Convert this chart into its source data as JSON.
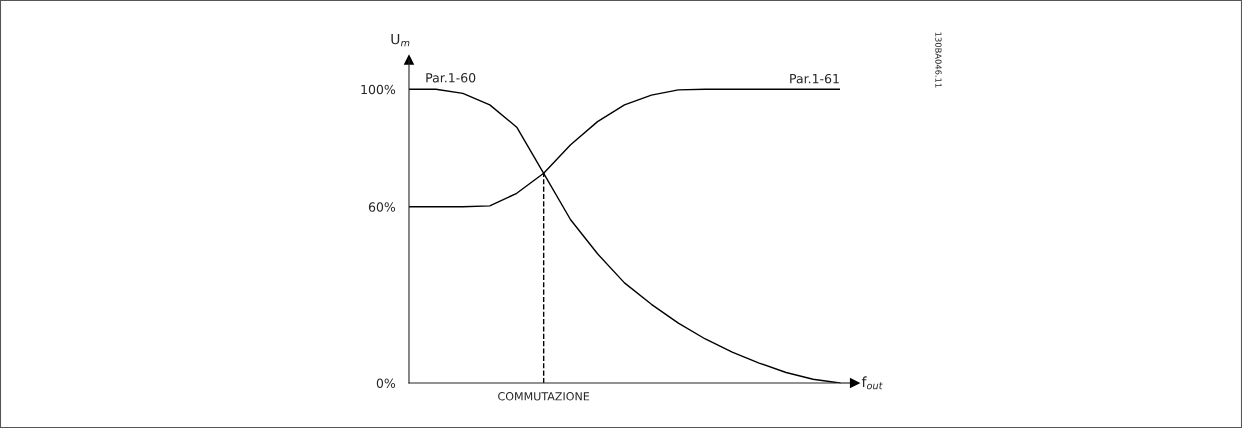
{
  "chart_data": {
    "type": "line",
    "ylabel": "U$_{m}$",
    "categories": [
      null,
      null,
      null,
      null,
      null,
      null,
      null,
      null,
      null,
      null,
      null,
      null,
      null,
      null,
      null,
      null,
      null
    ],
    "series": [
      {
        "name": "Par.1-60",
        "color": "#000000",
        "values": [
          100,
          100,
          98.6,
          94.7,
          87.1,
          71.4,
          55.6,
          44,
          34.1,
          26.8,
          20.4,
          15.0,
          10.5,
          6.8,
          3.6,
          1.3,
          0
        ]
      },
      {
        "name": "Par.1-61",
        "color": "#000000",
        "values": [
          60,
          60,
          60,
          60.3,
          64.6,
          71.4,
          81.1,
          89,
          94.7,
          98.0,
          99.8,
          100,
          100,
          100,
          100,
          100,
          100
        ]
      }
    ],
    "ylim": [
      0,
      110
    ],
    "yticks": [
      {
        "value": 0,
        "label": "0%"
      },
      {
        "value": 60,
        "label": "60%"
      },
      {
        "value": 100,
        "label": "100%"
      }
    ],
    "tick_labels": "y",
    "annotations": [
      "130BA046.11",
      "f$_{out}$",
      "COMMUTAZIONE"
    ],
    "grid": false,
    "legend": false,
    "marker": "none",
    "line_style": "solid"
  }
}
